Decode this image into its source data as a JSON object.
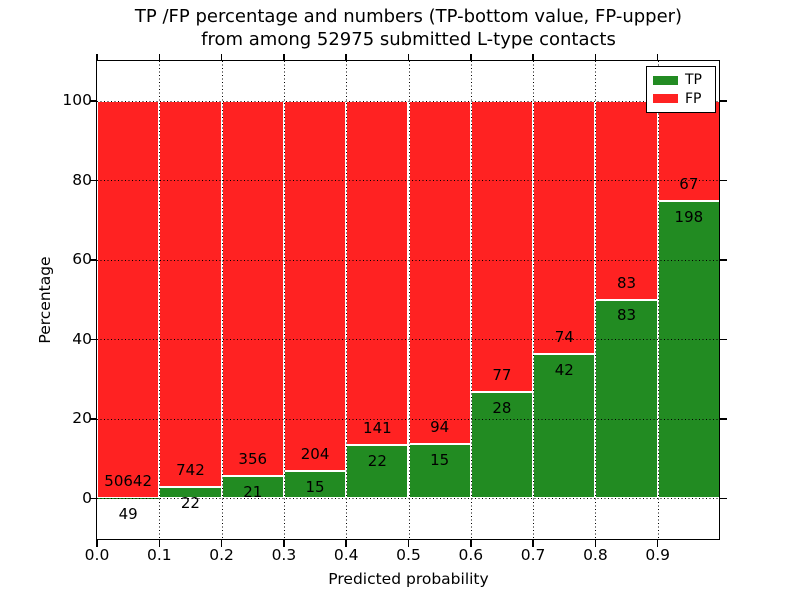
{
  "title": {
    "line1": "TP /FP percentage and numbers (TP-bottom value, FP-upper)",
    "line2": "from among 52975 submitted L-type contacts"
  },
  "axes": {
    "xlabel": "Predicted probability",
    "ylabel": "Percentage",
    "x_tick_labels": [
      "0.0",
      "0.1",
      "0.2",
      "0.3",
      "0.4",
      "0.5",
      "0.6",
      "0.7",
      "0.8",
      "0.9"
    ],
    "y_tick_labels": [
      "0",
      "20",
      "40",
      "60",
      "80",
      "100"
    ]
  },
  "legend": {
    "items": [
      {
        "label": "TP",
        "color": "#228b22"
      },
      {
        "label": "FP",
        "color": "#ff2222"
      }
    ]
  },
  "colors": {
    "tp": "#228b22",
    "fp": "#ff2222",
    "grid": "#000000",
    "text": "#000000",
    "background": "#ffffff",
    "axes_edge": "#000000",
    "bar_edge": "#ffffff"
  },
  "chart_data": {
    "type": "bar",
    "stacked": true,
    "title": "TP /FP percentage and numbers (TP-bottom value, FP-upper) from among 52975 submitted L-type contacts",
    "xlabel": "Predicted probability",
    "ylabel": "Percentage",
    "grid": true,
    "grid_style": "dotted",
    "legend_position": "upper right",
    "xlim": [
      0.0,
      1.0
    ],
    "ylim": [
      -10.5,
      110
    ],
    "x_tick_values": [
      0.0,
      0.1,
      0.2,
      0.3,
      0.4,
      0.5,
      0.6,
      0.7,
      0.8,
      0.9
    ],
    "y_tick_values": [
      0,
      20,
      40,
      60,
      80,
      100
    ],
    "bin_edges": [
      0.0,
      0.1,
      0.2,
      0.3,
      0.4,
      0.5,
      0.6,
      0.7,
      0.8,
      0.9,
      1.0
    ],
    "bar_total_percent": 100,
    "series": [
      {
        "name": "TP",
        "position": "bottom",
        "color": "#228b22",
        "counts": [
          49,
          22,
          21,
          15,
          22,
          15,
          28,
          42,
          83,
          198
        ]
      },
      {
        "name": "FP",
        "position": "top",
        "color": "#ff2222",
        "counts": [
          50642,
          742,
          356,
          204,
          141,
          94,
          77,
          74,
          83,
          67
        ]
      }
    ],
    "tp_percent_of_bin": [
      0.1,
      2.88,
      5.57,
      6.85,
      13.5,
      13.76,
      26.67,
      36.21,
      50.0,
      74.72
    ],
    "annotation_rule": "FP count printed above TP/FP boundary, TP count printed below boundary",
    "total_contacts": 52975
  }
}
